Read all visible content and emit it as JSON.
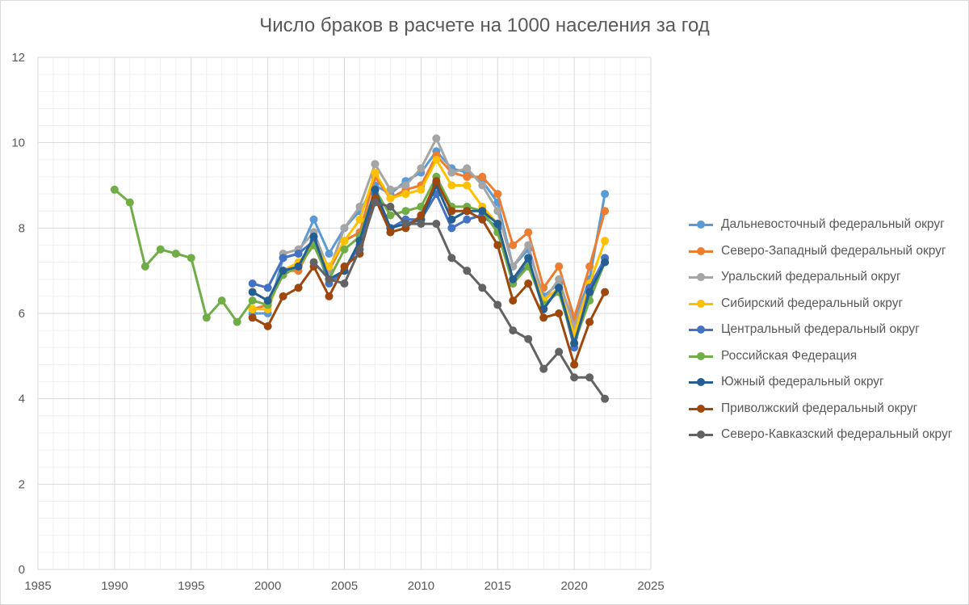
{
  "chart_data": {
    "type": "scatter",
    "title": "Число браков в расчете на 1000 населения за год",
    "xlabel": "",
    "ylabel": "",
    "xlim": [
      1985,
      2025
    ],
    "ylim": [
      0,
      12
    ],
    "x_ticks": [
      "1985",
      "1990",
      "1995",
      "2000",
      "2005",
      "2010",
      "2015",
      "2020",
      "2025"
    ],
    "y_ticks": [
      "0",
      "2",
      "4",
      "6",
      "8",
      "10",
      "12"
    ],
    "grid": true,
    "legend_position": "right",
    "series": [
      {
        "name": "Дальневосточный федеральный округ",
        "color": "#5b9bd5",
        "x": [
          1999,
          2000,
          2001,
          2002,
          2003,
          2004,
          2005,
          2006,
          2007,
          2008,
          2009,
          2010,
          2011,
          2012,
          2013,
          2014,
          2015,
          2016,
          2017,
          2018,
          2019,
          2020,
          2021,
          2022
        ],
        "y": [
          6.0,
          6.0,
          7.3,
          7.4,
          8.2,
          7.4,
          8.0,
          8.4,
          9.0,
          8.8,
          9.1,
          9.3,
          9.8,
          9.4,
          9.3,
          9.1,
          8.6,
          7.1,
          7.5,
          6.4,
          6.7,
          5.8,
          6.8,
          8.8
        ]
      },
      {
        "name": "Северо-Западный федеральный округ",
        "color": "#ed7d31",
        "x": [
          1999,
          2000,
          2001,
          2002,
          2003,
          2004,
          2005,
          2006,
          2007,
          2008,
          2009,
          2010,
          2011,
          2012,
          2013,
          2014,
          2015,
          2016,
          2017,
          2018,
          2019,
          2020,
          2021,
          2022
        ],
        "y": [
          6.1,
          6.2,
          7.0,
          7.0,
          7.7,
          7.0,
          7.7,
          7.9,
          9.2,
          8.7,
          8.9,
          9.0,
          9.7,
          9.3,
          9.2,
          9.2,
          8.8,
          7.6,
          7.9,
          6.6,
          7.1,
          5.9,
          7.1,
          8.4
        ]
      },
      {
        "name": "Уральский федеральный округ",
        "color": "#a5a5a5",
        "x": [
          2001,
          2002,
          2003,
          2004,
          2005,
          2006,
          2007,
          2008,
          2009,
          2010,
          2011,
          2012,
          2013,
          2014,
          2015,
          2016,
          2017,
          2018,
          2019,
          2020,
          2021,
          2022
        ],
        "y": [
          7.4,
          7.5,
          7.9,
          7.0,
          8.0,
          8.5,
          9.5,
          8.9,
          9.0,
          9.4,
          10.1,
          9.3,
          9.4,
          9.0,
          8.4,
          7.1,
          7.6,
          6.3,
          6.8,
          5.7,
          6.7,
          7.2
        ]
      },
      {
        "name": "Сибирский федеральный округ",
        "color": "#ffc000",
        "x": [
          1999,
          2000,
          2001,
          2002,
          2003,
          2004,
          2005,
          2006,
          2007,
          2008,
          2009,
          2010,
          2011,
          2012,
          2013,
          2014,
          2015,
          2016,
          2017,
          2018,
          2019,
          2020,
          2021,
          2022
        ],
        "y": [
          6.1,
          6.1,
          7.0,
          7.2,
          7.6,
          7.1,
          7.7,
          8.2,
          9.3,
          8.7,
          8.8,
          8.9,
          9.6,
          9.0,
          9.0,
          8.5,
          8.1,
          6.8,
          7.2,
          6.3,
          6.6,
          5.5,
          6.7,
          7.7
        ]
      },
      {
        "name": "Центральный федеральный округ",
        "color": "#4472c4",
        "x": [
          1999,
          2000,
          2001,
          2002,
          2003,
          2004,
          2005,
          2006,
          2007,
          2008,
          2009,
          2010,
          2011,
          2012,
          2013,
          2014,
          2015,
          2016,
          2017,
          2018,
          2019,
          2020,
          2021,
          2022
        ],
        "y": [
          6.7,
          6.6,
          7.3,
          7.4,
          7.7,
          6.7,
          7.0,
          7.6,
          8.8,
          8.0,
          8.2,
          8.2,
          8.8,
          8.0,
          8.2,
          8.3,
          8.0,
          6.7,
          7.2,
          6.1,
          6.6,
          5.2,
          6.6,
          7.3
        ]
      },
      {
        "name": "Российская Федерация",
        "color": "#70ad47",
        "x": [
          1990,
          1991,
          1992,
          1993,
          1994,
          1995,
          1996,
          1997,
          1998,
          1999,
          2000,
          2001,
          2002,
          2003,
          2004,
          2005,
          2006,
          2007,
          2008,
          2009,
          2010,
          2011,
          2012,
          2013,
          2014,
          2015,
          2016,
          2017,
          2018,
          2019,
          2020,
          2021,
          2022
        ],
        "y": [
          8.9,
          8.6,
          7.1,
          7.5,
          7.4,
          7.3,
          5.9,
          6.3,
          5.8,
          6.3,
          6.2,
          6.9,
          7.1,
          7.6,
          6.8,
          7.5,
          7.8,
          8.9,
          8.3,
          8.4,
          8.5,
          9.2,
          8.5,
          8.5,
          8.4,
          7.9,
          6.7,
          7.1,
          6.2,
          6.5,
          5.3,
          6.3,
          7.2
        ]
      },
      {
        "name": "Южный федеральный округ",
        "color": "#255e91",
        "x": [
          1999,
          2000,
          2001,
          2002,
          2003,
          2004,
          2005,
          2006,
          2007,
          2008,
          2009,
          2010,
          2011,
          2012,
          2013,
          2014,
          2015,
          2016,
          2017,
          2018,
          2019,
          2020,
          2021,
          2022
        ],
        "y": [
          6.5,
          6.3,
          7.0,
          7.1,
          7.8,
          6.8,
          7.0,
          7.7,
          8.9,
          8.0,
          8.1,
          8.2,
          9.0,
          8.2,
          8.4,
          8.4,
          8.1,
          6.8,
          7.3,
          6.1,
          6.6,
          5.3,
          6.5,
          7.2
        ]
      },
      {
        "name": "Приволжский федеральный округ",
        "color": "#9e480e",
        "x": [
          1999,
          2000,
          2001,
          2002,
          2003,
          2004,
          2005,
          2006,
          2007,
          2008,
          2009,
          2010,
          2011,
          2012,
          2013,
          2014,
          2015,
          2016,
          2017,
          2018,
          2019,
          2020,
          2021,
          2022
        ],
        "y": [
          5.9,
          5.7,
          6.4,
          6.6,
          7.1,
          6.4,
          7.1,
          7.4,
          8.7,
          7.9,
          8.0,
          8.3,
          9.1,
          8.4,
          8.4,
          8.2,
          7.6,
          6.3,
          6.7,
          5.9,
          6.0,
          4.8,
          5.8,
          6.5
        ]
      },
      {
        "name": "Северо-Кавказский федеральный округ",
        "color": "#636363",
        "x": [
          2003,
          2004,
          2005,
          2006,
          2007,
          2008,
          2009,
          2010,
          2011,
          2012,
          2013,
          2014,
          2015,
          2016,
          2017,
          2018,
          2019,
          2020,
          2021,
          2022
        ],
        "y": [
          7.2,
          6.8,
          6.7,
          7.5,
          8.6,
          8.5,
          8.1,
          8.1,
          8.1,
          7.3,
          7.0,
          6.6,
          6.2,
          5.6,
          5.4,
          4.7,
          5.1,
          4.5,
          4.5,
          4.0
        ]
      }
    ]
  }
}
